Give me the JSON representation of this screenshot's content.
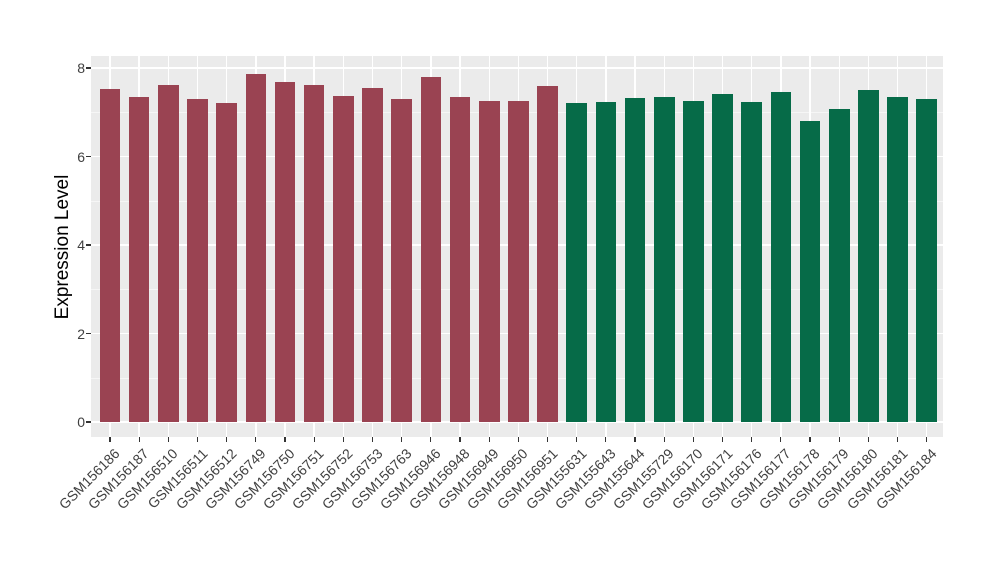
{
  "chart_data": {
    "type": "bar",
    "title": "",
    "xlabel": "",
    "ylabel": "Expression Level",
    "ylim": [
      0,
      8.3
    ],
    "yticks": [
      0,
      2,
      4,
      6,
      8
    ],
    "y_minor_ticks": [
      1,
      3,
      5,
      7
    ],
    "grid": true,
    "legend_position": "none",
    "panel_background": "#EBEBEB",
    "grid_color": "#FFFFFF",
    "axis_text_color": "#404040",
    "group_colors": {
      "maroon": "#9A4352",
      "green": "#066B48"
    },
    "categories": [
      "GSM156186",
      "GSM156187",
      "GSM156510",
      "GSM156511",
      "GSM156512",
      "GSM156749",
      "GSM156750",
      "GSM156751",
      "GSM156752",
      "GSM156753",
      "GSM156763",
      "GSM156946",
      "GSM156948",
      "GSM156949",
      "GSM156950",
      "GSM156951",
      "GSM155631",
      "GSM155643",
      "GSM155644",
      "GSM155729",
      "GSM156170",
      "GSM156171",
      "GSM156176",
      "GSM156177",
      "GSM156178",
      "GSM156179",
      "GSM156180",
      "GSM156181",
      "GSM156184"
    ],
    "values": [
      7.53,
      7.35,
      7.61,
      7.3,
      7.22,
      7.86,
      7.69,
      7.62,
      7.37,
      7.55,
      7.3,
      7.79,
      7.35,
      7.26,
      7.26,
      7.6,
      7.2,
      7.24,
      7.32,
      7.35,
      7.26,
      7.41,
      7.24,
      7.45,
      6.81,
      7.07,
      7.5,
      7.34,
      7.31
    ],
    "groups": [
      "maroon",
      "maroon",
      "maroon",
      "maroon",
      "maroon",
      "maroon",
      "maroon",
      "maroon",
      "maroon",
      "maroon",
      "maroon",
      "maroon",
      "maroon",
      "maroon",
      "maroon",
      "maroon",
      "green",
      "green",
      "green",
      "green",
      "green",
      "green",
      "green",
      "green",
      "green",
      "green",
      "green",
      "green",
      "green"
    ]
  }
}
